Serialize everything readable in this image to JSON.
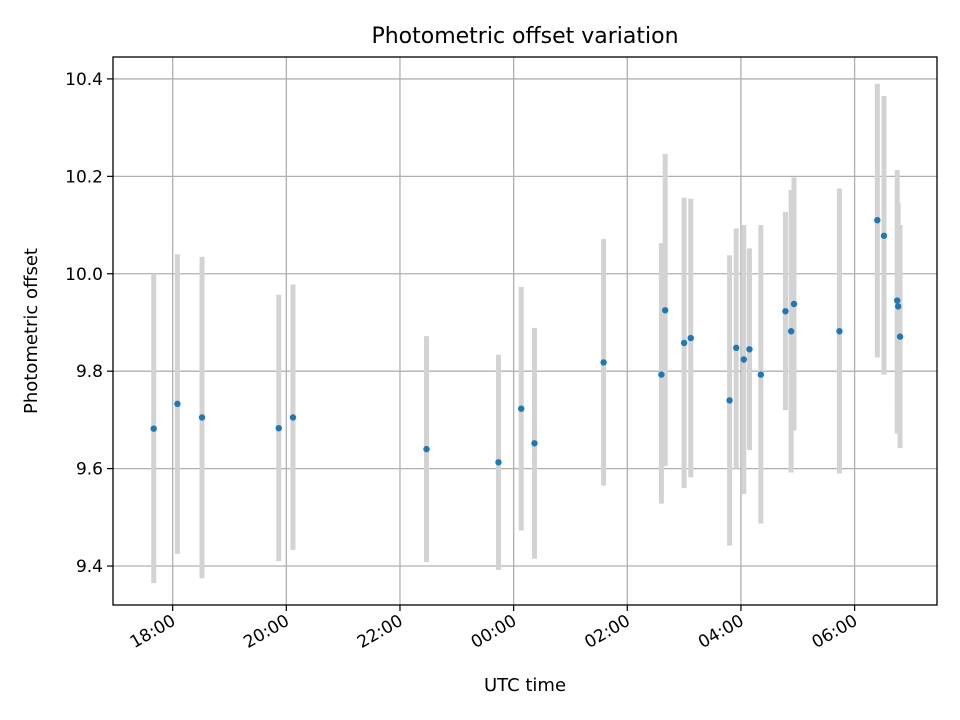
{
  "chart_data": {
    "type": "scatter",
    "title": "Photometric offset variation",
    "xlabel": "UTC time",
    "ylabel": "Photometric offset",
    "x_ticks": [
      "18:00",
      "20:00",
      "22:00",
      "00:00",
      "02:00",
      "04:00",
      "06:00"
    ],
    "x_tick_hours": [
      18,
      20,
      22,
      24,
      26,
      28,
      30
    ],
    "x_axis_start": "17:00",
    "xlim_hours": [
      16.95,
      31.45
    ],
    "ylim": [
      9.32,
      10.445
    ],
    "y_ticks": [
      9.4,
      9.6,
      9.8,
      10.0,
      10.2,
      10.4
    ],
    "y_tick_labels": [
      "9.4",
      "9.6",
      "9.8",
      "10.0",
      "10.2",
      "10.4"
    ],
    "grid": true,
    "marker_color": "#1f77b4",
    "errorbar_color": "#d3d3d3",
    "points": [
      {
        "time": "17:40",
        "y": 9.682,
        "low": 9.365,
        "high": 10.0
      },
      {
        "time": "18:05",
        "y": 9.733,
        "low": 9.425,
        "high": 10.04
      },
      {
        "time": "18:31",
        "y": 9.705,
        "low": 9.375,
        "high": 10.035
      },
      {
        "time": "19:52",
        "y": 9.683,
        "low": 9.41,
        "high": 9.957
      },
      {
        "time": "20:07",
        "y": 9.705,
        "low": 9.433,
        "high": 9.978
      },
      {
        "time": "22:28",
        "y": 9.64,
        "low": 9.408,
        "high": 9.872
      },
      {
        "time": "23:44",
        "y": 9.613,
        "low": 9.392,
        "high": 9.834
      },
      {
        "time": "00:08",
        "y": 9.723,
        "low": 9.473,
        "high": 9.973
      },
      {
        "time": "00:22",
        "y": 9.652,
        "low": 9.415,
        "high": 9.889
      },
      {
        "time": "01:35",
        "y": 9.818,
        "low": 9.565,
        "high": 10.071
      },
      {
        "time": "02:36",
        "y": 9.793,
        "low": 9.528,
        "high": 10.063
      },
      {
        "time": "02:40",
        "y": 9.925,
        "low": 9.605,
        "high": 10.246
      },
      {
        "time": "03:00",
        "y": 9.858,
        "low": 9.56,
        "high": 10.156
      },
      {
        "time": "03:07",
        "y": 9.868,
        "low": 9.582,
        "high": 10.154
      },
      {
        "time": "03:48",
        "y": 9.74,
        "low": 9.442,
        "high": 10.038
      },
      {
        "time": "03:55",
        "y": 9.848,
        "low": 9.6,
        "high": 10.093
      },
      {
        "time": "04:03",
        "y": 9.824,
        "low": 9.548,
        "high": 10.1
      },
      {
        "time": "04:09",
        "y": 9.845,
        "low": 9.638,
        "high": 10.052
      },
      {
        "time": "04:21",
        "y": 9.793,
        "low": 9.487,
        "high": 10.1
      },
      {
        "time": "04:47",
        "y": 9.923,
        "low": 9.72,
        "high": 10.127
      },
      {
        "time": "04:53",
        "y": 9.882,
        "low": 9.592,
        "high": 10.172
      },
      {
        "time": "04:56",
        "y": 9.938,
        "low": 9.678,
        "high": 10.198
      },
      {
        "time": "05:44",
        "y": 9.882,
        "low": 9.59,
        "high": 10.175
      },
      {
        "time": "06:24",
        "y": 10.11,
        "low": 9.828,
        "high": 10.39
      },
      {
        "time": "06:31",
        "y": 10.078,
        "low": 9.793,
        "high": 10.365
      },
      {
        "time": "06:45",
        "y": 9.945,
        "low": 9.672,
        "high": 10.213
      },
      {
        "time": "06:46",
        "y": 9.933,
        "low": 9.72,
        "high": 10.146
      },
      {
        "time": "06:48",
        "y": 9.871,
        "low": 9.642,
        "high": 10.1
      }
    ]
  }
}
